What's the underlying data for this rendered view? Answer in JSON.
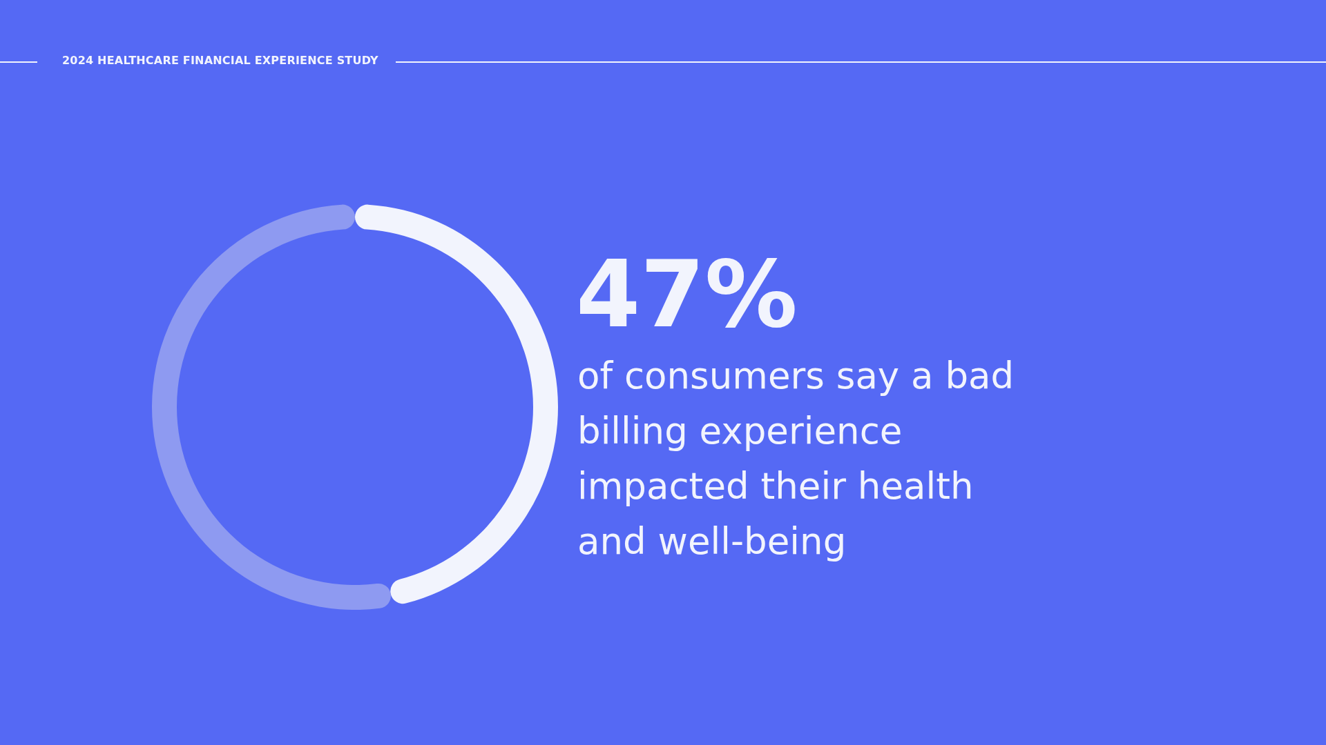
{
  "chart_data": {
    "type": "donut",
    "title": "2024 HEALTHCARE FINANCIAL EXPERIENCE STUDY",
    "categories": [
      null,
      null
    ],
    "values": [
      47,
      53
    ],
    "colors": [
      "#f2f4fd",
      "#8e9af1"
    ],
    "value_labels": [
      "47%",
      null
    ],
    "annotations": [
      "of consumers say a bad billing experience impacted their health and well-being"
    ],
    "legend": false
  }
}
